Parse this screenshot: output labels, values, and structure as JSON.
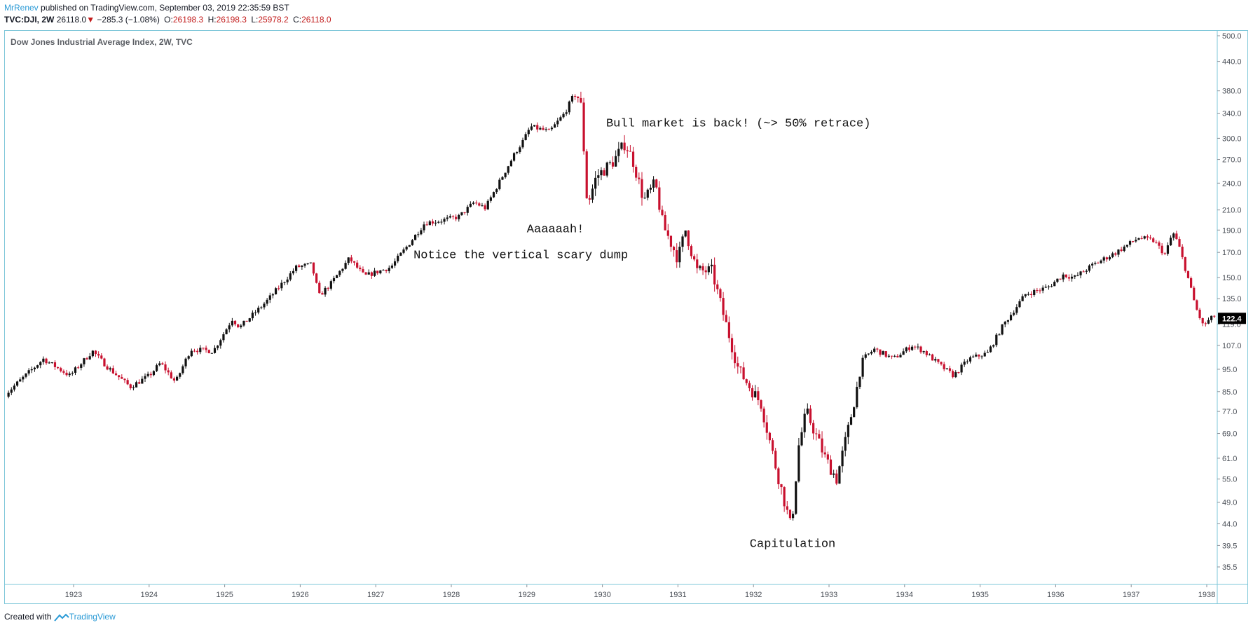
{
  "header": {
    "author": "MrRenev",
    "published_text": "published on TradingView.com, September 03, 2019 22:35:59 BST",
    "symbol": "TVC:DJI, 2W",
    "last": "26118.0",
    "change": "−285.3 (−1.08%)",
    "o_label": "O:",
    "o": "26198.3",
    "h_label": "H:",
    "h": "26198.3",
    "l_label": "L:",
    "l": "25978.2",
    "c_label": "C:",
    "c": "26118.0"
  },
  "footer": {
    "created_with": "Created with",
    "brand": "TradingView"
  },
  "colors": {
    "up": "#111111",
    "down": "#c8102e",
    "border": "#7ec7d9",
    "label_bg": "#000000",
    "label_text": "#ffffff"
  },
  "chart_data": {
    "type": "candlestick",
    "title": "Dow Jones Industrial Average Index, 2W, TVC",
    "y_scale": "log",
    "ylim": [
      32,
      520
    ],
    "xlim": [
      1922.1,
      1938.2
    ],
    "y_ticks": [
      "500.0",
      "440.0",
      "380.0",
      "340.0",
      "300.0",
      "270.0",
      "240.0",
      "210.0",
      "190.0",
      "170.0",
      "150.0",
      "135.0",
      "119.0",
      "107.0",
      "95.0",
      "85.0",
      "77.0",
      "69.0",
      "61.0",
      "55.0",
      "49.0",
      "44.0",
      "39.5",
      "35.5"
    ],
    "x_ticks": [
      "1923",
      "1924",
      "1925",
      "1926",
      "1927",
      "1928",
      "1929",
      "1930",
      "1931",
      "1932",
      "1933",
      "1934",
      "1935",
      "1936",
      "1937",
      "1938"
    ],
    "last_price_label": "122.4",
    "last_price": 122.4,
    "anchors": [
      [
        1922.1,
        84
      ],
      [
        1922.6,
        100
      ],
      [
        1922.95,
        92
      ],
      [
        1923.25,
        104
      ],
      [
        1923.45,
        96
      ],
      [
        1923.75,
        87
      ],
      [
        1924.0,
        92
      ],
      [
        1924.15,
        98
      ],
      [
        1924.35,
        89
      ],
      [
        1924.55,
        105
      ],
      [
        1924.85,
        104
      ],
      [
        1925.1,
        122
      ],
      [
        1925.2,
        117
      ],
      [
        1925.55,
        133
      ],
      [
        1925.95,
        158
      ],
      [
        1926.15,
        160
      ],
      [
        1926.25,
        137
      ],
      [
        1926.4,
        145
      ],
      [
        1926.65,
        165
      ],
      [
        1926.85,
        151
      ],
      [
        1927.2,
        158
      ],
      [
        1927.4,
        174
      ],
      [
        1927.65,
        197
      ],
      [
        1927.85,
        199
      ],
      [
        1928.1,
        203
      ],
      [
        1928.3,
        218
      ],
      [
        1928.45,
        212
      ],
      [
        1928.85,
        280
      ],
      [
        1928.95,
        296
      ],
      [
        1929.05,
        318
      ],
      [
        1929.3,
        310
      ],
      [
        1929.5,
        340
      ],
      [
        1929.65,
        380
      ],
      [
        1929.72,
        350
      ],
      [
        1929.8,
        215
      ],
      [
        1929.92,
        248
      ],
      [
        1930.15,
        268
      ],
      [
        1930.3,
        293
      ],
      [
        1930.4,
        270
      ],
      [
        1930.55,
        220
      ],
      [
        1930.7,
        240
      ],
      [
        1930.8,
        195
      ],
      [
        1931.0,
        165
      ],
      [
        1931.1,
        190
      ],
      [
        1931.25,
        155
      ],
      [
        1931.45,
        155
      ],
      [
        1931.6,
        125
      ],
      [
        1931.8,
        95
      ],
      [
        1931.95,
        87
      ],
      [
        1932.1,
        80
      ],
      [
        1932.3,
        58
      ],
      [
        1932.5,
        43
      ],
      [
        1932.6,
        65
      ],
      [
        1932.7,
        77
      ],
      [
        1932.95,
        61
      ],
      [
        1933.1,
        55
      ],
      [
        1933.25,
        70
      ],
      [
        1933.45,
        100
      ],
      [
        1933.6,
        105
      ],
      [
        1933.85,
        100
      ],
      [
        1934.1,
        107
      ],
      [
        1934.25,
        104
      ],
      [
        1934.5,
        96
      ],
      [
        1934.65,
        92
      ],
      [
        1934.85,
        100
      ],
      [
        1935.1,
        103
      ],
      [
        1935.3,
        118
      ],
      [
        1935.6,
        138
      ],
      [
        1935.9,
        143
      ],
      [
        1936.1,
        152
      ],
      [
        1936.25,
        150
      ],
      [
        1936.5,
        160
      ],
      [
        1936.8,
        170
      ],
      [
        1937.1,
        183
      ],
      [
        1937.3,
        180
      ],
      [
        1937.45,
        168
      ],
      [
        1937.55,
        188
      ],
      [
        1937.62,
        178
      ],
      [
        1937.75,
        150
      ],
      [
        1937.85,
        130
      ],
      [
        1937.95,
        118
      ],
      [
        1938.1,
        124
      ],
      [
        1938.2,
        122
      ]
    ],
    "annotations": [
      {
        "text": "Bull market is back! (~> 50% retrace)",
        "x": 1930.05,
        "y": 318
      },
      {
        "text": "Aaaaaah!",
        "x": 1929.0,
        "y": 188
      },
      {
        "text": "Notice the vertical scary dump",
        "x": 1927.5,
        "y": 165
      },
      {
        "text": "Capitulation",
        "x": 1931.95,
        "y": 39.2
      }
    ]
  }
}
